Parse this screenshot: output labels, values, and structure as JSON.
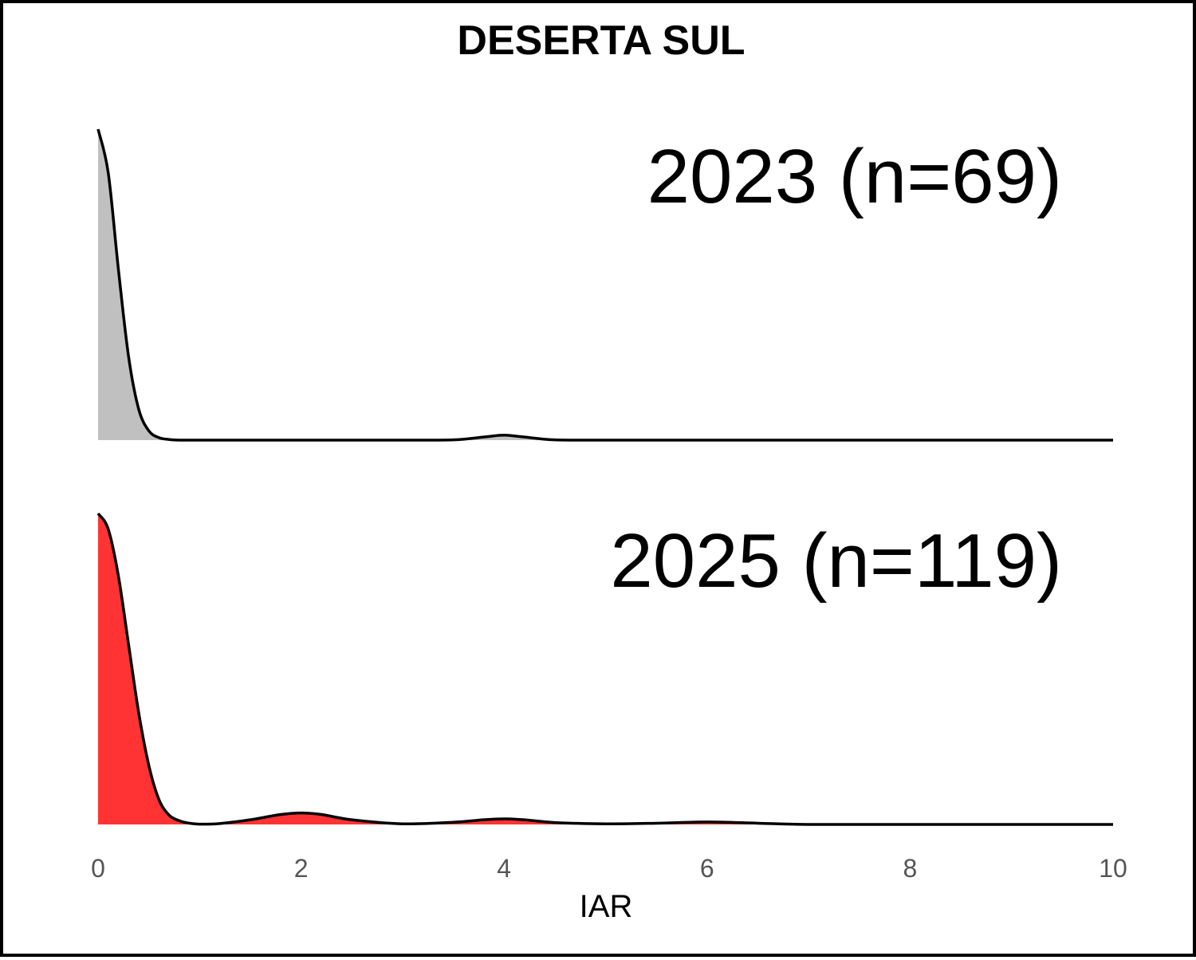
{
  "chart_data": {
    "type": "area",
    "title": "DESERTA SUL",
    "xlabel": "IAR",
    "ylabel": "",
    "xlim": [
      0,
      10
    ],
    "x_ticks": [
      0,
      2,
      4,
      6,
      8,
      10
    ],
    "x_tick_labels": [
      "0",
      "2",
      "4",
      "6",
      "8",
      "10"
    ],
    "grid": false,
    "legend": "none",
    "series": [
      {
        "label": "2023 (n=69)",
        "color": "#c0c0c0",
        "x": [
          0,
          0.1,
          0.2,
          0.3,
          0.4,
          0.5,
          0.6,
          0.7,
          0.8,
          1.0,
          2.0,
          3.0,
          3.5,
          3.8,
          4.0,
          4.2,
          4.5,
          5.0,
          6.0,
          8.0,
          10.0
        ],
        "density": [
          1.0,
          0.86,
          0.55,
          0.27,
          0.1,
          0.03,
          0.008,
          0.002,
          0.0,
          0.0,
          0.0,
          0.0,
          0.001,
          0.01,
          0.016,
          0.01,
          0.001,
          0.0,
          0.0,
          0.0,
          0.0
        ]
      },
      {
        "label": "2025 (n=119)",
        "color": "#ff3333",
        "x": [
          0,
          0.1,
          0.2,
          0.3,
          0.4,
          0.5,
          0.6,
          0.7,
          0.8,
          0.9,
          1.0,
          1.2,
          1.5,
          1.8,
          2.0,
          2.2,
          2.5,
          3.0,
          3.5,
          3.8,
          4.0,
          4.2,
          4.5,
          5.0,
          5.5,
          6.0,
          6.5,
          7.0,
          8.0,
          10.0
        ],
        "density": [
          1.0,
          0.95,
          0.8,
          0.58,
          0.36,
          0.19,
          0.08,
          0.03,
          0.012,
          0.004,
          0.001,
          0.003,
          0.015,
          0.032,
          0.037,
          0.032,
          0.015,
          0.002,
          0.007,
          0.015,
          0.018,
          0.015,
          0.006,
          0.002,
          0.004,
          0.008,
          0.004,
          0.0,
          0.0,
          0.0
        ]
      }
    ]
  }
}
